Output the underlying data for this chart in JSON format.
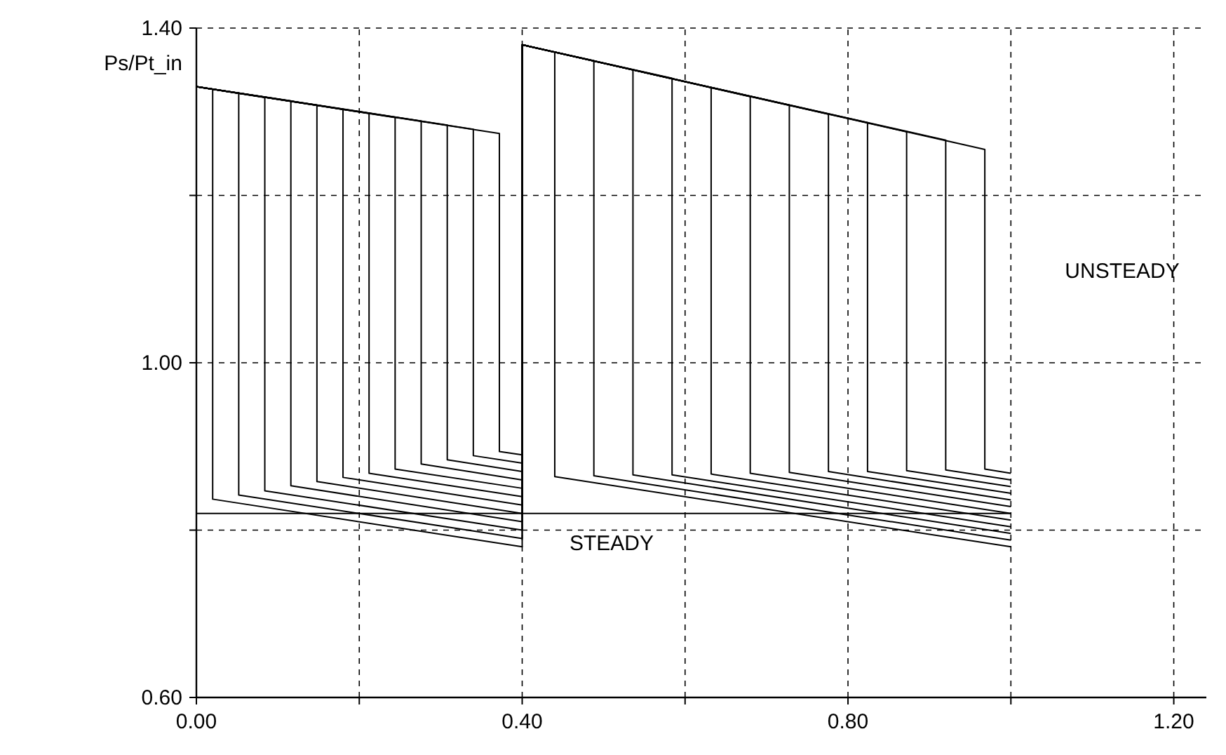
{
  "chart_data": {
    "type": "line",
    "ylabel": "Ps/Pt_in",
    "xlim": [
      0,
      1.24
    ],
    "ylim": [
      0.6,
      1.4
    ],
    "xticks": [
      {
        "value": 0,
        "label": "0.00"
      },
      {
        "value": 0.2,
        "label": null
      },
      {
        "value": 0.4,
        "label": "0.40"
      },
      {
        "value": 0.6,
        "label": null
      },
      {
        "value": 0.8,
        "label": "0.80"
      },
      {
        "value": 1.0,
        "label": null
      },
      {
        "value": 1.2,
        "label": "1.20"
      }
    ],
    "yticks": [
      {
        "value": 0.6,
        "label": "0.60"
      },
      {
        "value": 0.8,
        "label": null
      },
      {
        "value": 1.0,
        "label": "1.00"
      },
      {
        "value": 1.2,
        "label": null
      },
      {
        "value": 1.4,
        "label": "1.40"
      }
    ],
    "grid": true,
    "marker": "none",
    "line_style": "solid",
    "series": [
      {
        "color": "#000000",
        "x": [
          0,
          0.02,
          0.02,
          0.4,
          0.4,
          0.44,
          0.44,
          1.0
        ],
        "values": [
          1.33,
          1.327,
          0.837,
          0.78,
          1.38,
          1.371,
          0.864,
          0.78
        ]
      },
      {
        "color": "#000000",
        "x": [
          0,
          0.052,
          0.052,
          0.4,
          0.4,
          0.488,
          0.488,
          1.0
        ],
        "values": [
          1.33,
          1.322,
          0.842,
          0.79,
          1.38,
          1.361,
          0.865,
          0.788
        ]
      },
      {
        "color": "#000000",
        "x": [
          0,
          0.084,
          0.084,
          0.4,
          0.4,
          0.536,
          0.536,
          1.0
        ],
        "values": [
          1.33,
          1.317,
          0.847,
          0.8,
          1.38,
          1.35,
          0.866,
          0.796
        ]
      },
      {
        "color": "#000000",
        "x": [
          0,
          0.116,
          0.116,
          0.4,
          0.4,
          0.584,
          0.584,
          1.0
        ],
        "values": [
          1.33,
          1.313,
          0.853,
          0.81,
          1.38,
          1.34,
          0.866,
          0.804
        ]
      },
      {
        "color": "#000000",
        "x": [
          0,
          0.148,
          0.148,
          0.4,
          0.4,
          0.632,
          0.632,
          1.0
        ],
        "values": [
          1.33,
          1.308,
          0.858,
          0.82,
          1.38,
          1.329,
          0.867,
          0.812
        ]
      },
      {
        "color": "#000000",
        "x": [
          0,
          0.18,
          0.18,
          0.4,
          0.4,
          0.68,
          0.68,
          1.0
        ],
        "values": [
          1.33,
          1.303,
          0.863,
          0.83,
          1.38,
          1.318,
          0.868,
          0.82
        ]
      },
      {
        "color": "#000000",
        "x": [
          0,
          0.212,
          0.212,
          0.4,
          0.4,
          0.728,
          0.728,
          1.0
        ],
        "values": [
          1.33,
          1.298,
          0.868,
          0.84,
          1.38,
          1.308,
          0.869,
          0.828
        ]
      },
      {
        "color": "#000000",
        "x": [
          0,
          0.244,
          0.244,
          0.4,
          0.4,
          0.776,
          0.776,
          1.0
        ],
        "values": [
          1.33,
          1.293,
          0.873,
          0.85,
          1.38,
          1.297,
          0.87,
          0.836
        ]
      },
      {
        "color": "#000000",
        "x": [
          0,
          0.276,
          0.276,
          0.4,
          0.4,
          0.824,
          0.824,
          1.0
        ],
        "values": [
          1.33,
          1.289,
          0.879,
          0.86,
          1.38,
          1.287,
          0.87,
          0.844
        ]
      },
      {
        "color": "#000000",
        "x": [
          0,
          0.308,
          0.308,
          0.4,
          0.4,
          0.872,
          0.872,
          1.0
        ],
        "values": [
          1.33,
          1.284,
          0.884,
          0.87,
          1.38,
          1.276,
          0.871,
          0.852
        ]
      },
      {
        "color": "#000000",
        "x": [
          0,
          0.34,
          0.34,
          0.4,
          0.4,
          0.92,
          0.92,
          1.0
        ],
        "values": [
          1.33,
          1.279,
          0.889,
          0.88,
          1.38,
          1.266,
          0.872,
          0.86
        ]
      },
      {
        "color": "#000000",
        "x": [
          0,
          0.372,
          0.372,
          0.4,
          0.4,
          0.968,
          0.968,
          1.0
        ],
        "values": [
          1.33,
          1.274,
          0.894,
          0.89,
          1.38,
          1.255,
          0.873,
          0.868
        ]
      },
      {
        "color": "#000000",
        "x": [
          0,
          1.0
        ],
        "values": [
          0.82,
          0.82
        ]
      }
    ],
    "annotations": [
      "STEADY",
      "UNSTEADY"
    ]
  }
}
